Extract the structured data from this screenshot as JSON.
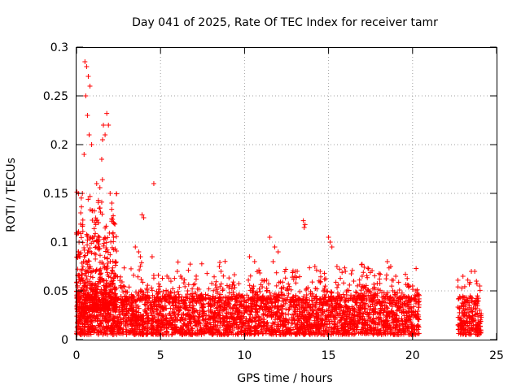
{
  "chart_data": {
    "type": "scatter",
    "title": "Day 041 of 2025, Rate Of TEC Index for receiver tamr",
    "xlabel": "GPS time / hours",
    "ylabel": "ROTI / TECUs",
    "xlim": [
      0,
      25
    ],
    "ylim": [
      0,
      0.3
    ],
    "xticks": [
      "0",
      "5",
      "10",
      "15",
      "20",
      "25"
    ],
    "yticks": [
      "0",
      "0.05",
      "0.1",
      "0.15",
      "0.2",
      "0.25",
      "0.3"
    ],
    "grid": true,
    "marker": "+",
    "color": "#ff0000",
    "series": [
      {
        "x": [
          0.5,
          0.6,
          0.7,
          0.8,
          0.55,
          0.65,
          0.75,
          0.9,
          0.45,
          0.35,
          0.25,
          0.15,
          0.1,
          1.2,
          1.5,
          1.55,
          1.6,
          1.7,
          1.8,
          1.9,
          2.0,
          2.1,
          2.2,
          1.4,
          1.3,
          3.5,
          3.7,
          3.8,
          3.9,
          4.0,
          4.6,
          4.5,
          6.0,
          6.2,
          8.5,
          8.6,
          10.3,
          10.6,
          11.5,
          11.8,
          12.0,
          11.7,
          13.0,
          13.5,
          13.6,
          13.55,
          14.5,
          15.0,
          15.1,
          15.2,
          15.5,
          16.0,
          16.5,
          17.0,
          18.5,
          18.7,
          19.0,
          20.0,
          20.2,
          23.0,
          23.5,
          23.7,
          23.8,
          24.0
        ],
        "y": [
          0.285,
          0.28,
          0.27,
          0.26,
          0.25,
          0.23,
          0.21,
          0.2,
          0.19,
          0.15,
          0.13,
          0.1,
          0.09,
          0.16,
          0.185,
          0.205,
          0.22,
          0.21,
          0.232,
          0.22,
          0.15,
          0.14,
          0.12,
          0.135,
          0.12,
          0.095,
          0.09,
          0.085,
          0.128,
          0.125,
          0.16,
          0.085,
          0.07,
          0.065,
          0.075,
          0.07,
          0.085,
          0.08,
          0.105,
          0.095,
          0.09,
          0.08,
          0.065,
          0.122,
          0.118,
          0.115,
          0.07,
          0.105,
          0.1,
          0.095,
          0.075,
          0.07,
          0.06,
          0.065,
          0.08,
          0.075,
          0.065,
          0.055,
          0.05,
          0.065,
          0.07,
          0.07,
          0.06,
          0.055
        ],
        "baseline_band": {
          "x_ranges": [
            [
              0,
              20.4
            ],
            [
              22.7,
              24.1
            ]
          ],
          "y_range": [
            0.005,
            0.045
          ]
        }
      }
    ]
  }
}
